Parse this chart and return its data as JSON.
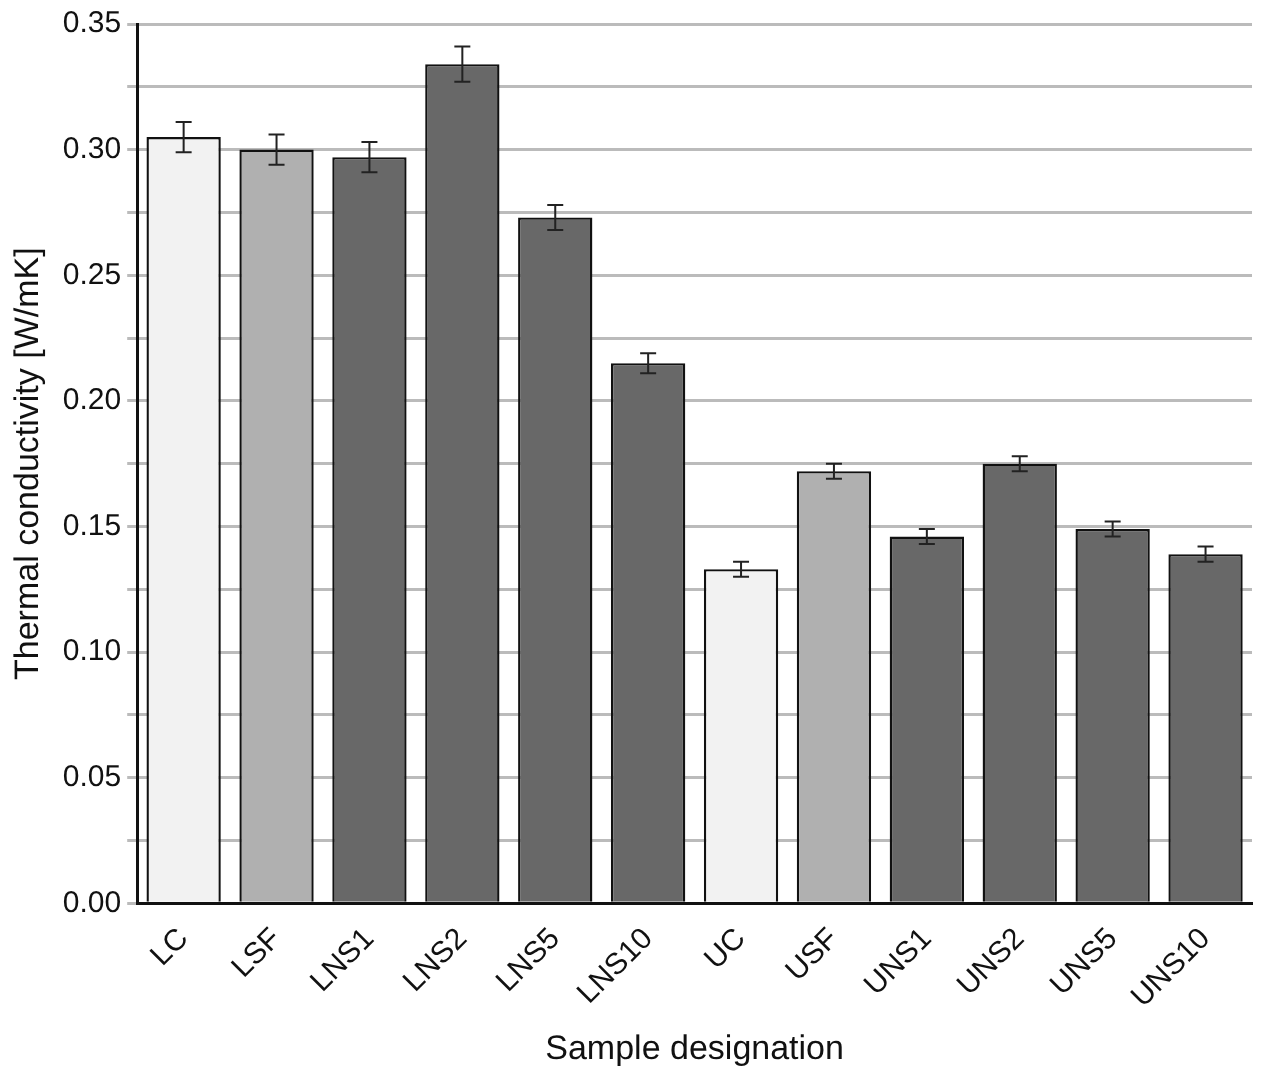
{
  "chart_data": {
    "type": "bar",
    "xlabel": "Sample designation",
    "ylabel": "Thermal conductivity [W/mK]",
    "categories": [
      "LC",
      "LSF",
      "LNS1",
      "LNS2",
      "LNS5",
      "LNS10",
      "UC",
      "USF",
      "UNS1",
      "UNS2",
      "UNS5",
      "UNS10"
    ],
    "values": [
      0.305,
      0.3,
      0.297,
      0.334,
      0.273,
      0.215,
      0.133,
      0.172,
      0.146,
      0.175,
      0.149,
      0.139
    ],
    "errors": [
      0.006,
      0.006,
      0.006,
      0.007,
      0.005,
      0.004,
      0.003,
      0.003,
      0.003,
      0.003,
      0.003,
      0.003
    ],
    "colors": [
      "#f2f2f2",
      "#b0b0b0",
      "#686868",
      "#686868",
      "#686868",
      "#686868",
      "#f2f2f2",
      "#b0b0b0",
      "#686868",
      "#686868",
      "#686868",
      "#686868"
    ],
    "ylim": [
      0,
      0.35
    ],
    "yticks": [
      {
        "value": 0,
        "label": "0.00"
      },
      {
        "value": 0.025,
        "label": null
      },
      0.05,
      {
        "value": 0.075,
        "label": null
      },
      {
        "value": 0.1,
        "label": "0.10"
      },
      {
        "value": 0.125,
        "label": null
      },
      0.15,
      {
        "value": 0.175,
        "label": null
      },
      {
        "value": 0.2,
        "label": "0.20"
      },
      {
        "value": 0.225,
        "label": null
      },
      0.25,
      {
        "value": 0.275,
        "label": null
      },
      {
        "value": 0.3,
        "label": "0.30"
      },
      {
        "value": 0.325,
        "label": null
      },
      0.35
    ],
    "grid": "y",
    "legend": false
  }
}
